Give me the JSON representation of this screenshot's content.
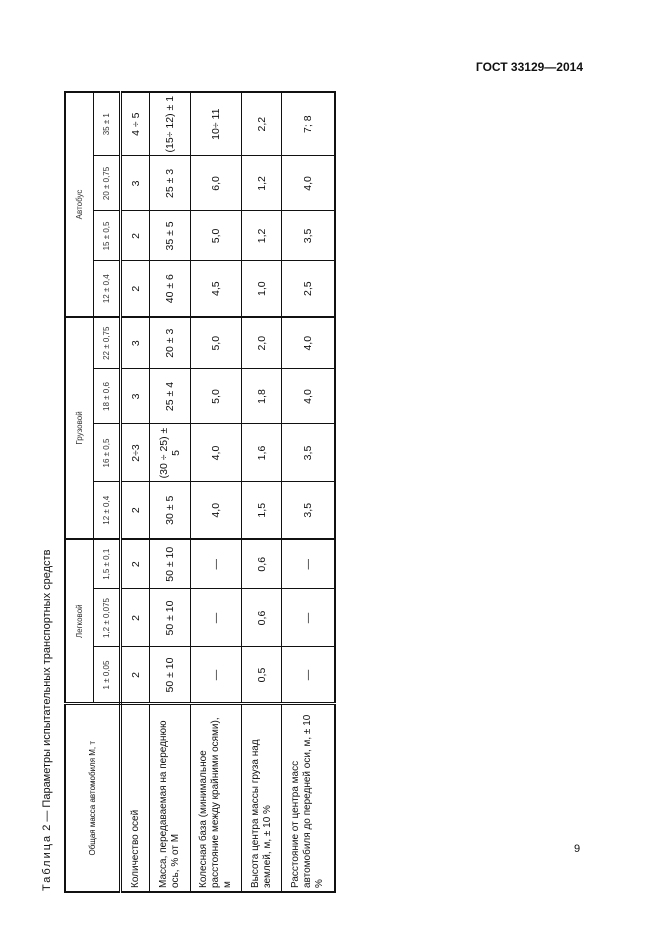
{
  "header": {
    "standard": "ГОСТ 33129—2014"
  },
  "page_number": "9",
  "table": {
    "caption_prefix": "Таблица",
    "caption_rest": " 2 — Параметры испытательных транспортных средств",
    "corner_label": "Общая масса автомобиля M, т",
    "groups": [
      {
        "label": "Легковой"
      },
      {
        "label": "Грузовой"
      },
      {
        "label": "Автобус"
      }
    ],
    "masses": [
      "1 ± 0,05",
      "1,2 ± 0,075",
      "1,5 ± 0,1",
      "12 ± 0,4",
      "16 ± 0,5",
      "18 ± 0,6",
      "22 ± 0,75",
      "12 ± 0,4",
      "15 ± 0,5",
      "20 ± 0,75",
      "35 ± 1"
    ],
    "rows": [
      {
        "label": "Количество осей",
        "values": [
          "2",
          "2",
          "2",
          "2",
          "2÷3",
          "3",
          "3",
          "2",
          "2",
          "3",
          "4 ÷ 5"
        ]
      },
      {
        "label": "Масса, передаваемая на переднюю ось, % от M",
        "values": [
          "50 ± 10",
          "50 ± 10",
          "50 ± 10",
          "30 ± 5",
          "(30 ÷ 25) ± 5",
          "25 ± 4",
          "20 ± 3",
          "40 ± 6",
          "35 ± 5",
          "25 ± 3",
          "(15÷ 12) ± 1"
        ]
      },
      {
        "label": "Колесная база (минимальное расстояние между крайними осями), м",
        "values": [
          "—",
          "—",
          "—",
          "4,0",
          "4,0",
          "5,0",
          "5,0",
          "4,5",
          "5,0",
          "6,0",
          "10÷ 11"
        ]
      },
      {
        "label": "Высота центра массы груза над землей, м, ± 10 %",
        "values": [
          "0,5",
          "0,6",
          "0,6",
          "1,5",
          "1,6",
          "1,8",
          "2,0",
          "1,0",
          "1,2",
          "1,2",
          "2,2"
        ]
      },
      {
        "label": "Расстояние от центра масс автомобиля до передней оси, м, ± 10 %",
        "values": [
          "—",
          "—",
          "—",
          "3,5",
          "3,5",
          "4,0",
          "4,0",
          "2,5",
          "3,5",
          "4,0",
          "7; 8"
        ]
      }
    ]
  }
}
